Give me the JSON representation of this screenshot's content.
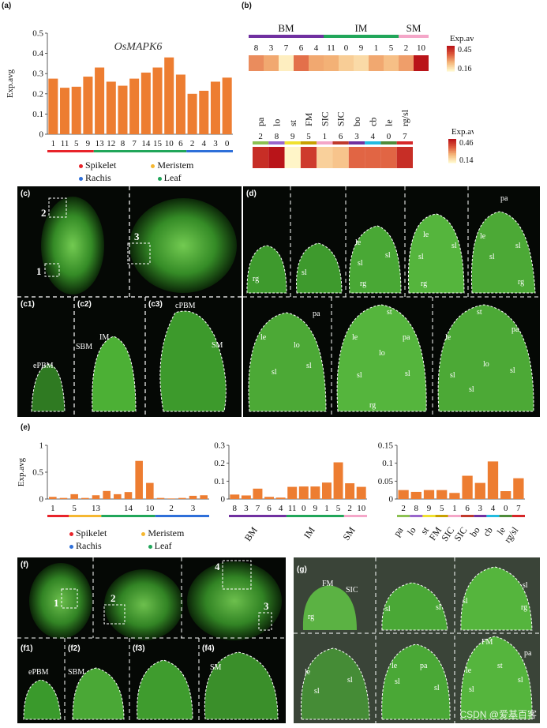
{
  "panel_labels": {
    "a": "(a)",
    "b": "(b)",
    "c": "(c)",
    "d": "(d)",
    "e": "(e)",
    "f": "(f)",
    "g": "(g)"
  },
  "legend_groups": [
    {
      "label": "Spikelet",
      "color": "#e8232a"
    },
    {
      "label": "Meristem",
      "color": "#f5b731"
    },
    {
      "label": "Rachis",
      "color": "#2e6fd9"
    },
    {
      "label": "Leaf",
      "color": "#21a65a"
    }
  ],
  "bar_color": "#ed7d31",
  "chart_data": [
    {
      "id": "a",
      "type": "bar",
      "title": "OsMAPK6",
      "ylabel": "Exp.avg",
      "ylim": [
        0,
        0.5
      ],
      "yticks": [
        "0",
        "0.1",
        "0.2",
        "0.3",
        "0.4",
        "0.5"
      ],
      "categories": [
        "1",
        "11",
        "5",
        "9",
        "13",
        "12",
        "8",
        "7",
        "14",
        "15",
        "10",
        "6",
        "2",
        "4",
        "3",
        "0"
      ],
      "values": [
        0.275,
        0.23,
        0.235,
        0.285,
        0.33,
        0.26,
        0.24,
        0.275,
        0.305,
        0.33,
        0.38,
        0.295,
        0.2,
        0.215,
        0.26,
        0.28
      ],
      "group_bar": [
        {
          "color": "#e8232a",
          "n": 4
        },
        {
          "color": "#21a65a",
          "n": 8
        },
        {
          "color": "#2e6fd9",
          "n": 4
        }
      ]
    },
    {
      "id": "e1",
      "type": "bar",
      "ylabel": "Exp.avg",
      "ylim": [
        0,
        1
      ],
      "yticks": [
        "0",
        "0.5",
        "1"
      ],
      "categories": [
        "1",
        "",
        "5",
        "",
        "13",
        "",
        "",
        "14",
        "",
        "10",
        "",
        "2",
        "",
        "3",
        ""
      ],
      "values": [
        0.04,
        0.02,
        0.09,
        0.02,
        0.07,
        0.15,
        0.09,
        0.13,
        0.71,
        0.3,
        0.02,
        0.01,
        0.02,
        0.06,
        0.07
      ],
      "group_bar": [
        {
          "color": "#e8232a",
          "n": 2
        },
        {
          "color": "#f5b731",
          "n": 3
        },
        {
          "color": "#21a65a",
          "n": 5
        },
        {
          "color": "#2e6fd9",
          "n": 5
        }
      ]
    },
    {
      "id": "e2",
      "type": "bar",
      "ylim": [
        0,
        0.3
      ],
      "yticks": [
        "0",
        "0.1",
        "0.2",
        "0.3"
      ],
      "categories": [
        "8",
        "3",
        "7",
        "6",
        "4",
        "11",
        "0",
        "9",
        "1",
        "5",
        "2",
        "10"
      ],
      "values": [
        0.025,
        0.02,
        0.058,
        0.012,
        0.008,
        0.068,
        0.07,
        0.07,
        0.092,
        0.205,
        0.088,
        0.068
      ],
      "group_bar": [
        {
          "color": "#7030a0",
          "n": 5
        },
        {
          "color": "#21a65a",
          "n": 5
        },
        {
          "color": "#f4a6c8",
          "n": 2
        }
      ],
      "group_labels": [
        "BM",
        "IM",
        "SM"
      ]
    },
    {
      "id": "e3",
      "type": "bar",
      "ylim": [
        0,
        0.15
      ],
      "yticks": [
        "0",
        "0.05",
        "0.1",
        "0.15"
      ],
      "categories": [
        "2",
        "8",
        "9",
        "5",
        "1",
        "6",
        "3",
        "4",
        "0",
        "7"
      ],
      "values": [
        0.025,
        0.02,
        0.025,
        0.025,
        0.017,
        0.065,
        0.045,
        0.105,
        0.022,
        0.058
      ],
      "group_bar": [
        {
          "color": "#8cc152",
          "n": 1
        },
        {
          "color": "#9966cc",
          "n": 1
        },
        {
          "color": "#f0e130",
          "n": 1
        },
        {
          "color": "#c8a000",
          "n": 1
        },
        {
          "color": "#f4a6c8",
          "n": 1
        },
        {
          "color": "#c0392b",
          "n": 1
        },
        {
          "color": "#7030a0",
          "n": 1
        },
        {
          "color": "#22bbe0",
          "n": 1
        },
        {
          "color": "#4e8b3a",
          "n": 1
        },
        {
          "color": "#d62728",
          "n": 1
        }
      ],
      "group_labels": [
        "pa",
        "lo",
        "st",
        "FM",
        "SIC",
        "SIC",
        "bo",
        "cb",
        "le",
        "rg/sl"
      ]
    },
    {
      "id": "b1",
      "type": "heatmap",
      "legend_title": "Exp.avg",
      "legend_max": "0.45",
      "legend_min": "0.16",
      "group_labels": [
        "BM",
        "IM",
        "SM"
      ],
      "group_colors": [
        "#7030a0",
        "#21a65a",
        "#f4a6c8"
      ],
      "group_n": [
        5,
        5,
        2
      ],
      "columns": [
        "8",
        "3",
        "7",
        "6",
        "4",
        "11",
        "0",
        "9",
        "1",
        "5",
        "2",
        "10"
      ],
      "values": [
        0.3,
        0.27,
        0.17,
        0.33,
        0.27,
        0.26,
        0.22,
        0.2,
        0.27,
        0.24,
        0.28,
        0.45
      ]
    },
    {
      "id": "b2",
      "type": "heatmap",
      "legend_title": "Exp.avg",
      "legend_max": "0.46",
      "legend_min": "0.14",
      "row_labels": [
        "pa",
        "lo",
        "st",
        "FM",
        "SIC",
        "SIC",
        "bo",
        "cb",
        "le",
        "rg/sl"
      ],
      "columns": [
        "2",
        "8",
        "9",
        "5",
        "1",
        "6",
        "3",
        "4",
        "0",
        "7"
      ],
      "col_colors": [
        "#8cc152",
        "#9966cc",
        "#f0e130",
        "#c8a000",
        "#f4a6c8",
        "#c0392b",
        "#7030a0",
        "#22bbe0",
        "#4e8b3a",
        "#d62728"
      ],
      "values": [
        0.42,
        0.46,
        0.14,
        0.4,
        0.2,
        0.22,
        0.34,
        0.34,
        0.34,
        0.42
      ]
    }
  ],
  "micro_c": {
    "n1": "1",
    "n2": "2",
    "n3": "3",
    "c1": "(c1)",
    "c2": "(c2)",
    "c3": "(c3)",
    "ePBM": "ePBM",
    "SBM": "SBM",
    "IM": "IM",
    "cPBM": "cPBM",
    "SM": "SM"
  },
  "micro_d": {
    "rg": "rg",
    "sl": "sl",
    "le": "le",
    "pa": "pa",
    "lo": "lo",
    "st": "st"
  },
  "micro_f": {
    "n1": "1",
    "n2": "2",
    "n3": "3",
    "n4": "4",
    "f1": "(f1)",
    "f2": "(f2)",
    "f3": "(f3)",
    "f4": "(f4)",
    "ePBM": "ePBM",
    "SBM": "SBM",
    "SM": "SM"
  },
  "micro_g": {
    "FM": "FM",
    "SIC": "SIC",
    "rg": "rg",
    "sl": "sl",
    "le": "le",
    "pa": "pa",
    "st": "st"
  },
  "watermark": "CSDN @爱基百客"
}
